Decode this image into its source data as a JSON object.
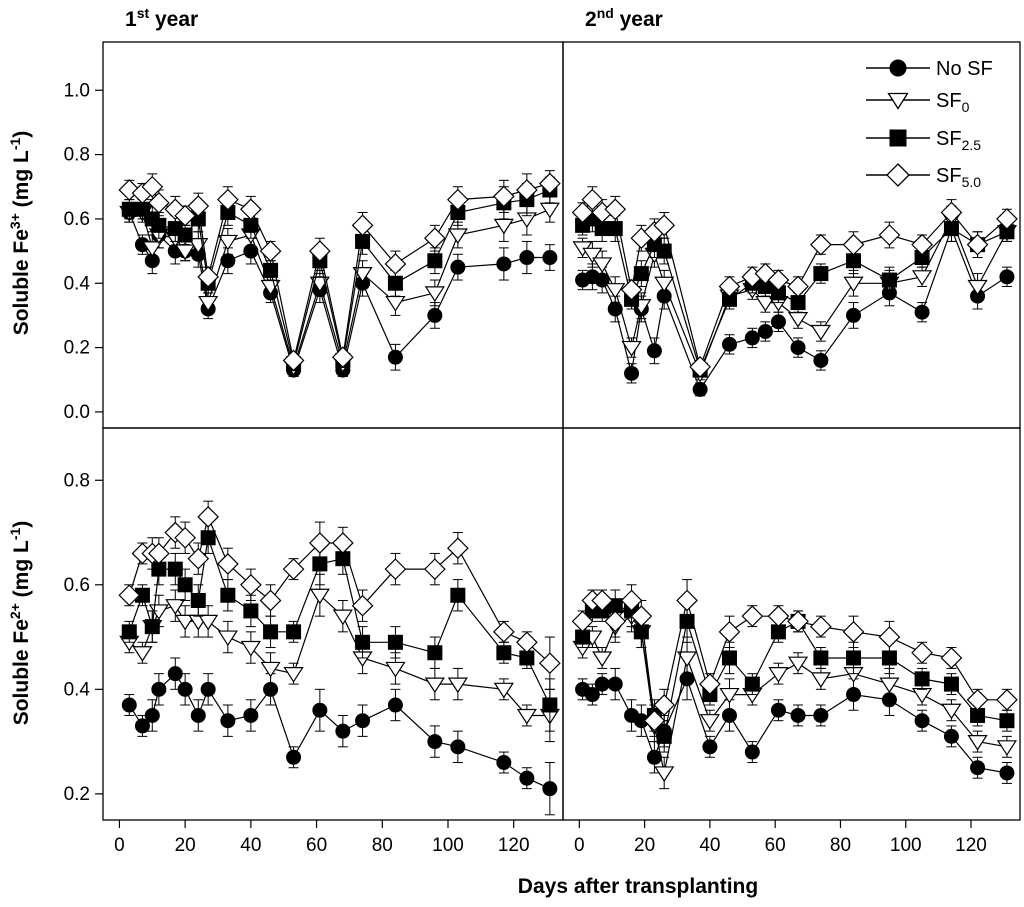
{
  "chart_data": {
    "type": "line",
    "xlabel": "Days after transplanting",
    "top_ylabel": {
      "base": "Soluble Fe",
      "sup": "3+",
      "unit": " (mg L",
      "unit_sup": "-1",
      "unit_end": ")"
    },
    "bottom_ylabel": {
      "base": "Soluble Fe",
      "sup": "2+",
      "unit": " (mg L",
      "unit_sup": "-1",
      "unit_end": ")"
    },
    "col_titles": [
      {
        "num": "1",
        "sup": "st",
        "rest": " year"
      },
      {
        "num": "2",
        "sup": "nd",
        "rest": " year"
      }
    ],
    "xlim": [
      -5,
      135
    ],
    "x_ticks": [
      0,
      20,
      40,
      60,
      80,
      100,
      120
    ],
    "top_ylim": [
      -0.05,
      1.15
    ],
    "top_yticks": [
      "0.0",
      "0.2",
      "0.4",
      "0.6",
      "0.8",
      "1.0"
    ],
    "bottom_ylim": [
      0.15,
      0.9
    ],
    "bottom_yticks": [
      "0.2",
      "0.4",
      "0.6",
      "0.8"
    ],
    "legend": [
      {
        "base": "No SF",
        "sub": "",
        "marker": "circle-filled"
      },
      {
        "base": "SF",
        "sub": "0",
        "marker": "triangle-open"
      },
      {
        "base": "SF",
        "sub": "2.5",
        "marker": "square-filled"
      },
      {
        "base": "SF",
        "sub": "5.0",
        "marker": "diamond-open"
      }
    ],
    "panels": [
      {
        "name": "1st year Fe3+",
        "x": [
          3,
          7,
          10,
          12,
          17,
          20,
          24,
          27,
          33,
          40,
          46,
          53,
          61,
          68,
          74,
          84,
          96,
          103,
          117,
          124,
          131
        ],
        "series": [
          {
            "name": "No SF",
            "values": [
              0.62,
              0.52,
              0.47,
              0.55,
              0.5,
              0.5,
              0.49,
              0.32,
              0.47,
              0.5,
              0.37,
              0.13,
              0.38,
              0.13,
              0.4,
              0.17,
              0.3,
              0.45,
              0.46,
              0.48,
              0.48
            ]
          },
          {
            "name": "SF0",
            "values": [
              0.62,
              0.62,
              0.51,
              0.55,
              0.54,
              0.5,
              0.52,
              0.34,
              0.53,
              0.55,
              0.39,
              0.14,
              0.4,
              0.15,
              0.43,
              0.34,
              0.37,
              0.55,
              0.58,
              0.6,
              0.63
            ]
          },
          {
            "name": "SF2.5",
            "values": [
              0.63,
              0.63,
              0.6,
              0.58,
              0.57,
              0.55,
              0.6,
              0.4,
              0.62,
              0.58,
              0.44,
              0.15,
              0.47,
              0.16,
              0.53,
              0.4,
              0.47,
              0.62,
              0.65,
              0.66,
              0.69
            ]
          },
          {
            "name": "SF5.0",
            "values": [
              0.69,
              0.68,
              0.7,
              0.65,
              0.63,
              0.61,
              0.64,
              0.42,
              0.66,
              0.63,
              0.5,
              0.16,
              0.5,
              0.17,
              0.58,
              0.46,
              0.54,
              0.66,
              0.67,
              0.69,
              0.71
            ]
          }
        ],
        "errors": [
          0.03,
          0.03,
          0.04,
          0.04,
          0.04,
          0.03,
          0.04,
          0.03,
          0.04,
          0.04,
          0.03,
          0.02,
          0.04,
          0.02,
          0.04,
          0.04,
          0.04,
          0.04,
          0.05,
          0.05,
          0.04
        ]
      },
      {
        "name": "2nd year Fe3+",
        "x": [
          1,
          4,
          7,
          11,
          16,
          19,
          23,
          26,
          37,
          46,
          53,
          57,
          61,
          67,
          74,
          84,
          95,
          105,
          114,
          122,
          131
        ],
        "series": [
          {
            "name": "No SF",
            "values": [
              0.41,
              0.42,
              0.41,
              0.32,
              0.12,
              0.32,
              0.19,
              0.36,
              0.07,
              0.21,
              0.23,
              0.25,
              0.28,
              0.2,
              0.16,
              0.3,
              0.37,
              0.31,
              0.57,
              0.36,
              0.42
            ]
          },
          {
            "name": "SF0",
            "values": [
              0.51,
              0.49,
              0.46,
              0.38,
              0.2,
              0.33,
              0.49,
              0.4,
              0.12,
              0.36,
              0.38,
              0.34,
              0.34,
              0.29,
              0.25,
              0.4,
              0.4,
              0.42,
              0.6,
              0.39,
              0.56
            ]
          },
          {
            "name": "SF2.5",
            "values": [
              0.58,
              0.6,
              0.57,
              0.57,
              0.35,
              0.43,
              0.52,
              0.5,
              0.13,
              0.35,
              0.4,
              0.39,
              0.37,
              0.34,
              0.43,
              0.47,
              0.41,
              0.48,
              0.57,
              0.52,
              0.56
            ]
          },
          {
            "name": "SF5.0",
            "values": [
              0.62,
              0.66,
              0.62,
              0.63,
              0.38,
              0.54,
              0.56,
              0.58,
              0.14,
              0.39,
              0.42,
              0.43,
              0.41,
              0.39,
              0.52,
              0.52,
              0.55,
              0.52,
              0.62,
              0.52,
              0.6
            ]
          }
        ],
        "errors": [
          0.03,
          0.04,
          0.04,
          0.04,
          0.03,
          0.04,
          0.04,
          0.04,
          0.02,
          0.03,
          0.03,
          0.03,
          0.03,
          0.03,
          0.03,
          0.04,
          0.04,
          0.03,
          0.04,
          0.04,
          0.03
        ]
      },
      {
        "name": "1st year Fe2+",
        "x": [
          3,
          7,
          10,
          12,
          17,
          20,
          24,
          27,
          33,
          40,
          46,
          53,
          61,
          68,
          74,
          84,
          96,
          103,
          117,
          124,
          131
        ],
        "series": [
          {
            "name": "No SF",
            "values": [
              0.37,
              0.33,
              0.35,
              0.4,
              0.43,
              0.4,
              0.35,
              0.4,
              0.34,
              0.35,
              0.4,
              0.27,
              0.36,
              0.32,
              0.34,
              0.37,
              0.3,
              0.29,
              0.26,
              0.23,
              0.21
            ]
          },
          {
            "name": "SF0",
            "values": [
              0.49,
              0.47,
              0.52,
              0.55,
              0.56,
              0.53,
              0.53,
              0.53,
              0.5,
              0.48,
              0.44,
              0.43,
              0.58,
              0.54,
              0.46,
              0.44,
              0.41,
              0.41,
              0.4,
              0.35,
              0.35
            ]
          },
          {
            "name": "SF2.5",
            "values": [
              0.51,
              0.58,
              0.52,
              0.63,
              0.63,
              0.6,
              0.57,
              0.69,
              0.58,
              0.55,
              0.51,
              0.51,
              0.64,
              0.65,
              0.49,
              0.49,
              0.47,
              0.58,
              0.47,
              0.46,
              0.37
            ]
          },
          {
            "name": "SF5.0",
            "values": [
              0.58,
              0.66,
              0.66,
              0.66,
              0.7,
              0.69,
              0.65,
              0.73,
              0.64,
              0.6,
              0.57,
              0.63,
              0.68,
              0.68,
              0.56,
              0.63,
              0.63,
              0.67,
              0.51,
              0.49,
              0.45
            ]
          }
        ],
        "errors": [
          0.02,
          0.02,
          0.03,
          0.03,
          0.03,
          0.03,
          0.03,
          0.03,
          0.03,
          0.03,
          0.03,
          0.02,
          0.04,
          0.03,
          0.03,
          0.03,
          0.03,
          0.03,
          0.02,
          0.02,
          0.05
        ]
      },
      {
        "name": "2nd year Fe2+",
        "x": [
          1,
          4,
          7,
          11,
          16,
          19,
          23,
          26,
          33,
          40,
          46,
          53,
          61,
          67,
          74,
          84,
          95,
          105,
          114,
          122,
          131
        ],
        "series": [
          {
            "name": "No SF",
            "values": [
              0.4,
              0.39,
              0.41,
              0.41,
              0.35,
              0.34,
              0.27,
              0.32,
              0.42,
              0.29,
              0.35,
              0.28,
              0.36,
              0.35,
              0.35,
              0.39,
              0.38,
              0.34,
              0.31,
              0.25,
              0.24
            ]
          },
          {
            "name": "SF0",
            "values": [
              0.48,
              0.5,
              0.46,
              0.52,
              0.54,
              0.51,
              0.33,
              0.24,
              0.46,
              0.34,
              0.39,
              0.39,
              0.43,
              0.45,
              0.42,
              0.43,
              0.41,
              0.39,
              0.36,
              0.3,
              0.29
            ]
          },
          {
            "name": "SF2.5",
            "values": [
              0.5,
              0.55,
              0.55,
              0.56,
              0.55,
              0.51,
              0.35,
              0.31,
              0.53,
              0.39,
              0.46,
              0.41,
              0.51,
              0.53,
              0.46,
              0.46,
              0.46,
              0.42,
              0.41,
              0.35,
              0.34
            ]
          },
          {
            "name": "SF5.0",
            "values": [
              0.53,
              0.57,
              0.57,
              0.53,
              0.57,
              0.54,
              0.34,
              0.37,
              0.57,
              0.41,
              0.51,
              0.54,
              0.54,
              0.53,
              0.52,
              0.51,
              0.5,
              0.47,
              0.46,
              0.38,
              0.38
            ]
          }
        ],
        "errors": [
          0.02,
          0.02,
          0.02,
          0.03,
          0.03,
          0.03,
          0.03,
          0.03,
          0.04,
          0.02,
          0.03,
          0.02,
          0.02,
          0.02,
          0.02,
          0.03,
          0.03,
          0.02,
          0.02,
          0.02,
          0.02
        ]
      }
    ]
  }
}
